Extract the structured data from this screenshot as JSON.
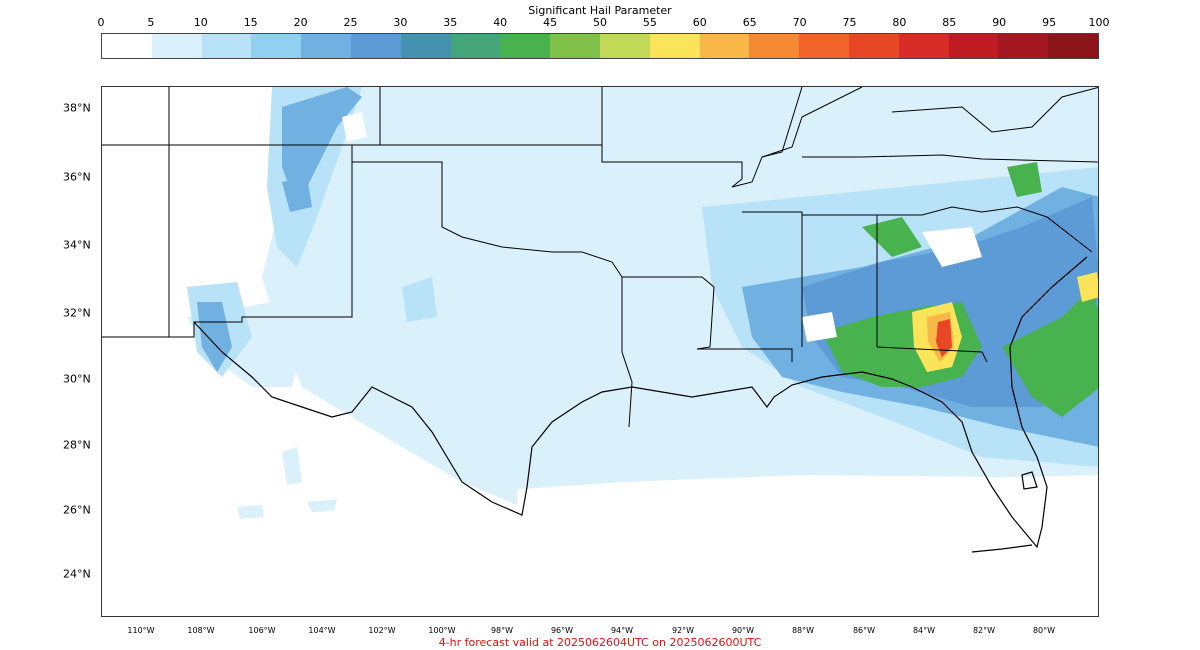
{
  "colorbar": {
    "title": "Significant Hail Parameter",
    "ticks": [
      "0",
      "5",
      "10",
      "15",
      "20",
      "25",
      "30",
      "35",
      "40",
      "45",
      "50",
      "55",
      "60",
      "65",
      "70",
      "75",
      "80",
      "85",
      "90",
      "95",
      "100"
    ],
    "colors": [
      "#ffffff",
      "#daf0fb",
      "#b7e2f7",
      "#92d0f1",
      "#70b1e2",
      "#5c9bd6",
      "#4592b0",
      "#44a47a",
      "#48b24f",
      "#80c14a",
      "#c1d957",
      "#fbe45a",
      "#f9b747",
      "#f68a33",
      "#f2632a",
      "#e74627",
      "#d92b27",
      "#c01c24",
      "#a5181f",
      "#8b1419"
    ]
  },
  "map": {
    "lat_labels": [
      "38°N",
      "36°N",
      "34°N",
      "32°N",
      "30°N",
      "28°N",
      "26°N",
      "24°N"
    ],
    "lon_labels": [
      "110°W",
      "108°W",
      "106°W",
      "104°W",
      "102°W",
      "100°W",
      "98°W",
      "96°W",
      "94°W",
      "92°W",
      "90°W",
      "88°W",
      "86°W",
      "84°W",
      "82°W",
      "80°W"
    ]
  },
  "footer": {
    "text": "4-hr forecast valid at 2025062604UTC on 2025062600UTC"
  }
}
